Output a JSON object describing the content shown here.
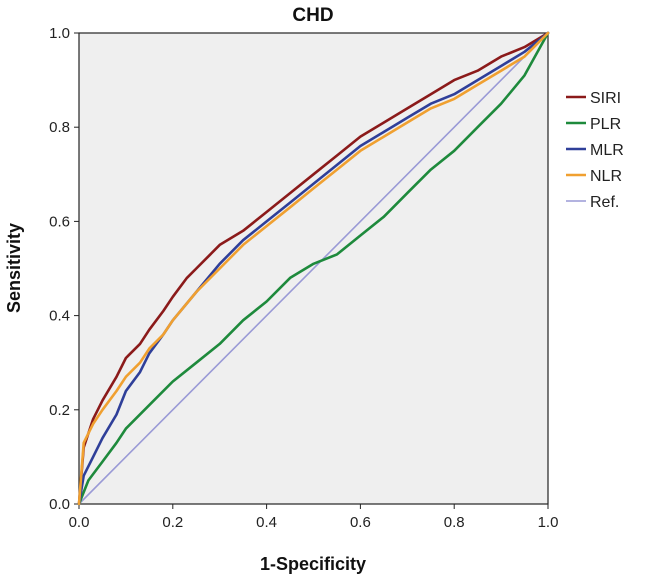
{
  "chart_data": {
    "type": "line",
    "title": "CHD",
    "xlabel": "1-Specificity",
    "ylabel": "Sensitivity",
    "xlim": [
      0,
      1
    ],
    "ylim": [
      0,
      1
    ],
    "xticks": [
      "0.0",
      "0.2",
      "0.4",
      "0.6",
      "0.8",
      "1.0"
    ],
    "yticks": [
      "0.0",
      "0.2",
      "0.4",
      "0.6",
      "0.8",
      "1.0"
    ],
    "legend_position": "right",
    "series": [
      {
        "name": "SIRI",
        "color": "#8b1a1a",
        "x": [
          0,
          0.01,
          0.03,
          0.05,
          0.08,
          0.1,
          0.13,
          0.15,
          0.18,
          0.2,
          0.23,
          0.25,
          0.28,
          0.3,
          0.35,
          0.4,
          0.45,
          0.5,
          0.55,
          0.6,
          0.65,
          0.7,
          0.75,
          0.8,
          0.85,
          0.9,
          0.95,
          1.0
        ],
        "y": [
          0,
          0.12,
          0.18,
          0.22,
          0.27,
          0.31,
          0.34,
          0.37,
          0.41,
          0.44,
          0.48,
          0.5,
          0.53,
          0.55,
          0.58,
          0.62,
          0.66,
          0.7,
          0.74,
          0.78,
          0.81,
          0.84,
          0.87,
          0.9,
          0.92,
          0.95,
          0.97,
          1.0
        ]
      },
      {
        "name": "PLR",
        "color": "#1e8a3c",
        "x": [
          0,
          0.02,
          0.05,
          0.08,
          0.1,
          0.15,
          0.2,
          0.25,
          0.3,
          0.35,
          0.4,
          0.45,
          0.5,
          0.55,
          0.6,
          0.65,
          0.7,
          0.75,
          0.8,
          0.85,
          0.9,
          0.95,
          1.0
        ],
        "y": [
          0,
          0.05,
          0.09,
          0.13,
          0.16,
          0.21,
          0.26,
          0.3,
          0.34,
          0.39,
          0.43,
          0.48,
          0.51,
          0.53,
          0.57,
          0.61,
          0.66,
          0.71,
          0.75,
          0.8,
          0.85,
          0.91,
          1.0
        ]
      },
      {
        "name": "MLR",
        "color": "#2f3f99",
        "x": [
          0,
          0.01,
          0.03,
          0.05,
          0.08,
          0.1,
          0.13,
          0.15,
          0.18,
          0.2,
          0.25,
          0.3,
          0.35,
          0.4,
          0.45,
          0.5,
          0.55,
          0.6,
          0.65,
          0.7,
          0.75,
          0.8,
          0.85,
          0.9,
          0.95,
          1.0
        ],
        "y": [
          0,
          0.06,
          0.1,
          0.14,
          0.19,
          0.24,
          0.28,
          0.32,
          0.36,
          0.39,
          0.45,
          0.51,
          0.56,
          0.6,
          0.64,
          0.68,
          0.72,
          0.76,
          0.79,
          0.82,
          0.85,
          0.87,
          0.9,
          0.93,
          0.96,
          1.0
        ]
      },
      {
        "name": "NLR",
        "color": "#f0a030",
        "x": [
          0,
          0.01,
          0.03,
          0.05,
          0.08,
          0.1,
          0.13,
          0.15,
          0.18,
          0.2,
          0.25,
          0.3,
          0.35,
          0.4,
          0.45,
          0.5,
          0.55,
          0.6,
          0.65,
          0.7,
          0.75,
          0.8,
          0.85,
          0.9,
          0.95,
          1.0
        ],
        "y": [
          0,
          0.13,
          0.17,
          0.2,
          0.24,
          0.27,
          0.3,
          0.33,
          0.36,
          0.39,
          0.45,
          0.5,
          0.55,
          0.59,
          0.63,
          0.67,
          0.71,
          0.75,
          0.78,
          0.81,
          0.84,
          0.86,
          0.89,
          0.92,
          0.95,
          1.0
        ]
      },
      {
        "name": "Ref.",
        "color": "#9a9ad6",
        "x": [
          0,
          1
        ],
        "y": [
          0,
          1
        ]
      }
    ]
  }
}
